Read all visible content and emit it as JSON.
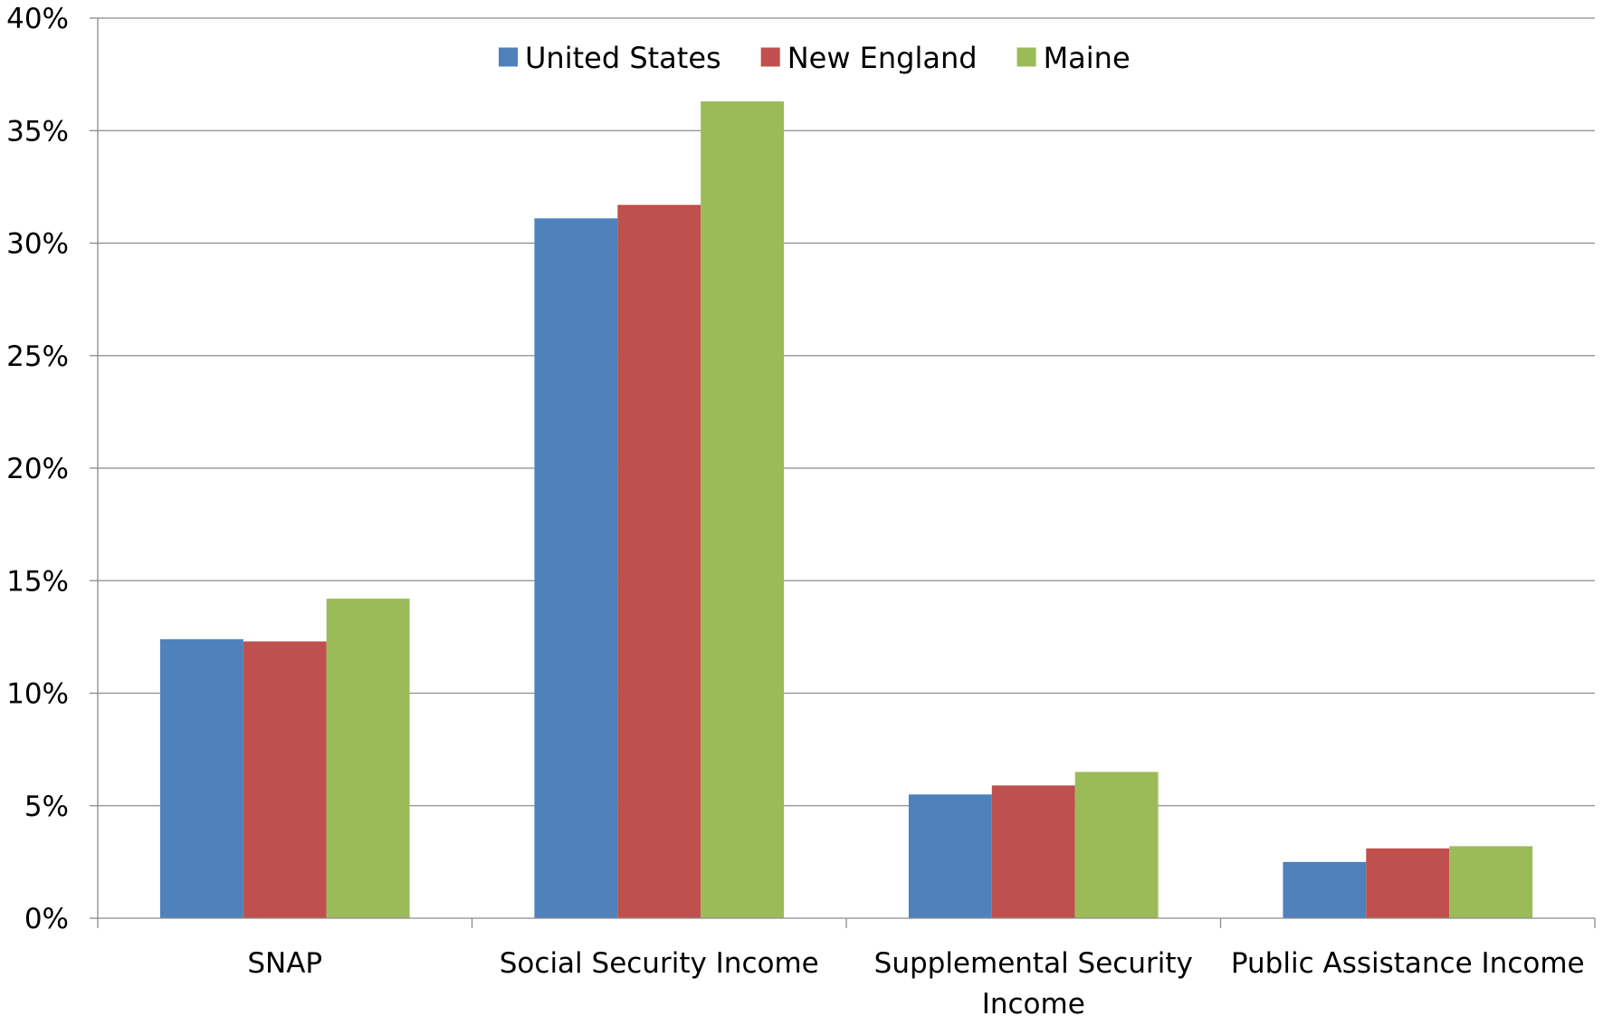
{
  "chart_data": {
    "type": "bar",
    "title": "",
    "xlabel": "",
    "ylabel": "",
    "categories": [
      [
        "SNAP"
      ],
      [
        "Social Security Income"
      ],
      [
        "Supplemental Security",
        "Income"
      ],
      [
        "Public Assistance Income"
      ]
    ],
    "series": [
      {
        "name": "United States",
        "color": "#4F81BD",
        "values": [
          12.4,
          31.1,
          5.5,
          2.5
        ]
      },
      {
        "name": "New England",
        "color": "#C0504D",
        "values": [
          12.3,
          31.7,
          5.9,
          3.1
        ]
      },
      {
        "name": "Maine",
        "color": "#9BBB59",
        "values": [
          14.2,
          36.3,
          6.5,
          3.2
        ]
      }
    ],
    "ylim": [
      0,
      40
    ],
    "yticks": [
      0,
      5,
      10,
      15,
      20,
      25,
      30,
      35,
      40
    ],
    "ytick_labels": [
      "0%",
      "5%",
      "10%",
      "15%",
      "20%",
      "25%",
      "30%",
      "35%",
      "40%"
    ],
    "grid": true,
    "legend_position": "top-center"
  }
}
